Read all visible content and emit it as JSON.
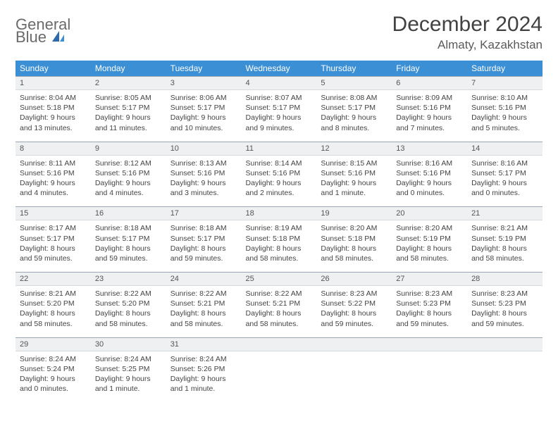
{
  "brand": {
    "line1": "General",
    "line2": "Blue"
  },
  "title": "December 2024",
  "location": "Almaty, Kazakhstan",
  "colors": {
    "header_bg": "#3b8fd4",
    "header_text": "#ffffff",
    "daynum_bg": "#eef0f2",
    "cell_border": "#9aa7b3",
    "brand_gray": "#6a6a6a",
    "brand_blue": "#3b7fc4"
  },
  "day_headers": [
    "Sunday",
    "Monday",
    "Tuesday",
    "Wednesday",
    "Thursday",
    "Friday",
    "Saturday"
  ],
  "weeks": [
    [
      {
        "n": "1",
        "sunrise": "Sunrise: 8:04 AM",
        "sunset": "Sunset: 5:18 PM",
        "day": "Daylight: 9 hours and 13 minutes."
      },
      {
        "n": "2",
        "sunrise": "Sunrise: 8:05 AM",
        "sunset": "Sunset: 5:17 PM",
        "day": "Daylight: 9 hours and 11 minutes."
      },
      {
        "n": "3",
        "sunrise": "Sunrise: 8:06 AM",
        "sunset": "Sunset: 5:17 PM",
        "day": "Daylight: 9 hours and 10 minutes."
      },
      {
        "n": "4",
        "sunrise": "Sunrise: 8:07 AM",
        "sunset": "Sunset: 5:17 PM",
        "day": "Daylight: 9 hours and 9 minutes."
      },
      {
        "n": "5",
        "sunrise": "Sunrise: 8:08 AM",
        "sunset": "Sunset: 5:17 PM",
        "day": "Daylight: 9 hours and 8 minutes."
      },
      {
        "n": "6",
        "sunrise": "Sunrise: 8:09 AM",
        "sunset": "Sunset: 5:16 PM",
        "day": "Daylight: 9 hours and 7 minutes."
      },
      {
        "n": "7",
        "sunrise": "Sunrise: 8:10 AM",
        "sunset": "Sunset: 5:16 PM",
        "day": "Daylight: 9 hours and 5 minutes."
      }
    ],
    [
      {
        "n": "8",
        "sunrise": "Sunrise: 8:11 AM",
        "sunset": "Sunset: 5:16 PM",
        "day": "Daylight: 9 hours and 4 minutes."
      },
      {
        "n": "9",
        "sunrise": "Sunrise: 8:12 AM",
        "sunset": "Sunset: 5:16 PM",
        "day": "Daylight: 9 hours and 4 minutes."
      },
      {
        "n": "10",
        "sunrise": "Sunrise: 8:13 AM",
        "sunset": "Sunset: 5:16 PM",
        "day": "Daylight: 9 hours and 3 minutes."
      },
      {
        "n": "11",
        "sunrise": "Sunrise: 8:14 AM",
        "sunset": "Sunset: 5:16 PM",
        "day": "Daylight: 9 hours and 2 minutes."
      },
      {
        "n": "12",
        "sunrise": "Sunrise: 8:15 AM",
        "sunset": "Sunset: 5:16 PM",
        "day": "Daylight: 9 hours and 1 minute."
      },
      {
        "n": "13",
        "sunrise": "Sunrise: 8:16 AM",
        "sunset": "Sunset: 5:16 PM",
        "day": "Daylight: 9 hours and 0 minutes."
      },
      {
        "n": "14",
        "sunrise": "Sunrise: 8:16 AM",
        "sunset": "Sunset: 5:17 PM",
        "day": "Daylight: 9 hours and 0 minutes."
      }
    ],
    [
      {
        "n": "15",
        "sunrise": "Sunrise: 8:17 AM",
        "sunset": "Sunset: 5:17 PM",
        "day": "Daylight: 8 hours and 59 minutes."
      },
      {
        "n": "16",
        "sunrise": "Sunrise: 8:18 AM",
        "sunset": "Sunset: 5:17 PM",
        "day": "Daylight: 8 hours and 59 minutes."
      },
      {
        "n": "17",
        "sunrise": "Sunrise: 8:18 AM",
        "sunset": "Sunset: 5:17 PM",
        "day": "Daylight: 8 hours and 59 minutes."
      },
      {
        "n": "18",
        "sunrise": "Sunrise: 8:19 AM",
        "sunset": "Sunset: 5:18 PM",
        "day": "Daylight: 8 hours and 58 minutes."
      },
      {
        "n": "19",
        "sunrise": "Sunrise: 8:20 AM",
        "sunset": "Sunset: 5:18 PM",
        "day": "Daylight: 8 hours and 58 minutes."
      },
      {
        "n": "20",
        "sunrise": "Sunrise: 8:20 AM",
        "sunset": "Sunset: 5:19 PM",
        "day": "Daylight: 8 hours and 58 minutes."
      },
      {
        "n": "21",
        "sunrise": "Sunrise: 8:21 AM",
        "sunset": "Sunset: 5:19 PM",
        "day": "Daylight: 8 hours and 58 minutes."
      }
    ],
    [
      {
        "n": "22",
        "sunrise": "Sunrise: 8:21 AM",
        "sunset": "Sunset: 5:20 PM",
        "day": "Daylight: 8 hours and 58 minutes."
      },
      {
        "n": "23",
        "sunrise": "Sunrise: 8:22 AM",
        "sunset": "Sunset: 5:20 PM",
        "day": "Daylight: 8 hours and 58 minutes."
      },
      {
        "n": "24",
        "sunrise": "Sunrise: 8:22 AM",
        "sunset": "Sunset: 5:21 PM",
        "day": "Daylight: 8 hours and 58 minutes."
      },
      {
        "n": "25",
        "sunrise": "Sunrise: 8:22 AM",
        "sunset": "Sunset: 5:21 PM",
        "day": "Daylight: 8 hours and 58 minutes."
      },
      {
        "n": "26",
        "sunrise": "Sunrise: 8:23 AM",
        "sunset": "Sunset: 5:22 PM",
        "day": "Daylight: 8 hours and 59 minutes."
      },
      {
        "n": "27",
        "sunrise": "Sunrise: 8:23 AM",
        "sunset": "Sunset: 5:23 PM",
        "day": "Daylight: 8 hours and 59 minutes."
      },
      {
        "n": "28",
        "sunrise": "Sunrise: 8:23 AM",
        "sunset": "Sunset: 5:23 PM",
        "day": "Daylight: 8 hours and 59 minutes."
      }
    ],
    [
      {
        "n": "29",
        "sunrise": "Sunrise: 8:24 AM",
        "sunset": "Sunset: 5:24 PM",
        "day": "Daylight: 9 hours and 0 minutes."
      },
      {
        "n": "30",
        "sunrise": "Sunrise: 8:24 AM",
        "sunset": "Sunset: 5:25 PM",
        "day": "Daylight: 9 hours and 1 minute."
      },
      {
        "n": "31",
        "sunrise": "Sunrise: 8:24 AM",
        "sunset": "Sunset: 5:26 PM",
        "day": "Daylight: 9 hours and 1 minute."
      },
      {
        "n": "",
        "sunrise": "",
        "sunset": "",
        "day": ""
      },
      {
        "n": "",
        "sunrise": "",
        "sunset": "",
        "day": ""
      },
      {
        "n": "",
        "sunrise": "",
        "sunset": "",
        "day": ""
      },
      {
        "n": "",
        "sunrise": "",
        "sunset": "",
        "day": ""
      }
    ]
  ]
}
